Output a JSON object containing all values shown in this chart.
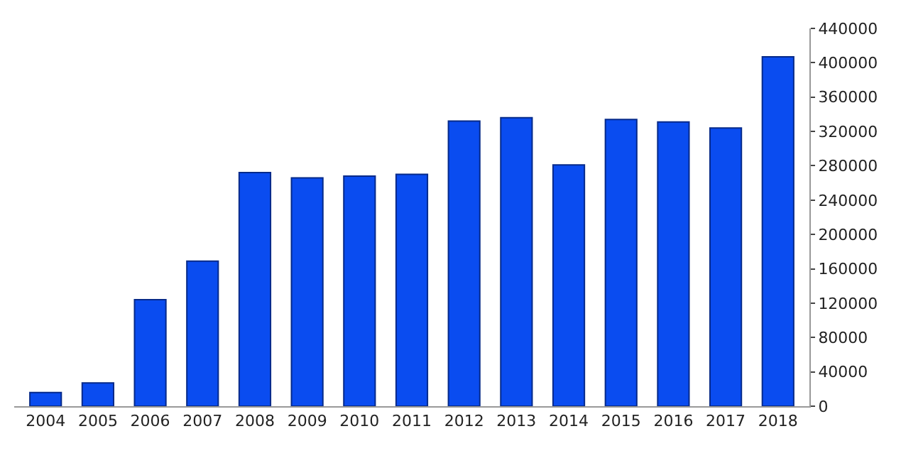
{
  "chart_data": {
    "type": "bar",
    "categories": [
      "2004",
      "2005",
      "2006",
      "2007",
      "2008",
      "2009",
      "2010",
      "2011",
      "2012",
      "2013",
      "2014",
      "2015",
      "2016",
      "2017",
      "2018"
    ],
    "values": [
      16000,
      27000,
      124000,
      169000,
      272000,
      266000,
      268000,
      270000,
      332000,
      336000,
      281000,
      334000,
      331000,
      324000,
      407000
    ],
    "color": "#0a4cf0",
    "ylim": [
      0,
      440000
    ],
    "yticks": [
      0,
      40000,
      80000,
      120000,
      160000,
      200000,
      240000,
      280000,
      320000,
      360000,
      400000,
      440000
    ]
  }
}
